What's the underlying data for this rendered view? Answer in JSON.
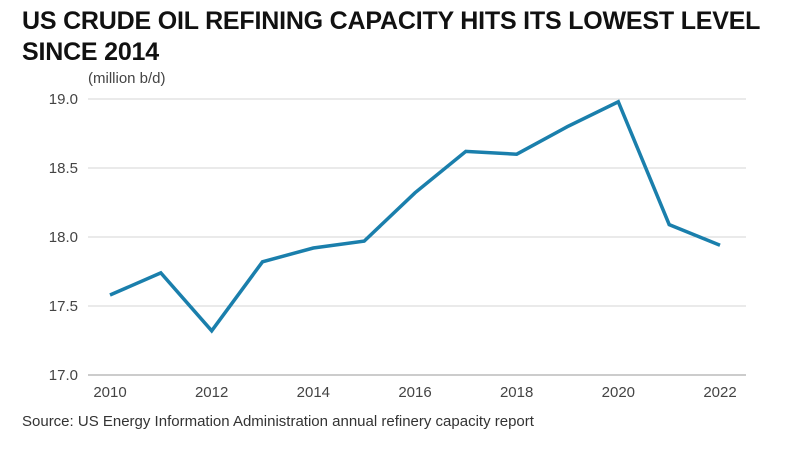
{
  "title": "US CRUDE OIL REFINING CAPACITY HITS ITS LOWEST LEVEL SINCE 2014",
  "unit_label": "(million b/d)",
  "source": "Source: US Energy Information Administration annual refinery capacity report",
  "colors": {
    "line": "#1a7fac",
    "grid": "#d4d4d4",
    "text": "#444444"
  },
  "chart_data": {
    "type": "line",
    "title": "US CRUDE OIL REFINING CAPACITY HITS ITS LOWEST LEVEL SINCE 2014",
    "ylabel": "(million b/d)",
    "xlabel": "",
    "x": [
      2010,
      2011,
      2012,
      2013,
      2014,
      2015,
      2016,
      2017,
      2018,
      2019,
      2020,
      2021,
      2022
    ],
    "values": [
      17.58,
      17.74,
      17.32,
      17.82,
      17.92,
      17.97,
      18.32,
      18.62,
      18.6,
      18.8,
      18.98,
      18.09,
      17.94
    ],
    "xlim": [
      2010,
      2022
    ],
    "ylim": [
      17.0,
      19.0
    ],
    "xticks": [
      "2010",
      "2012",
      "2014",
      "2016",
      "2018",
      "2020",
      "2022"
    ],
    "yticks": [
      "17.0",
      "17.5",
      "18.0",
      "18.5",
      "19.0"
    ],
    "grid": "horizontal",
    "legend": "none"
  }
}
